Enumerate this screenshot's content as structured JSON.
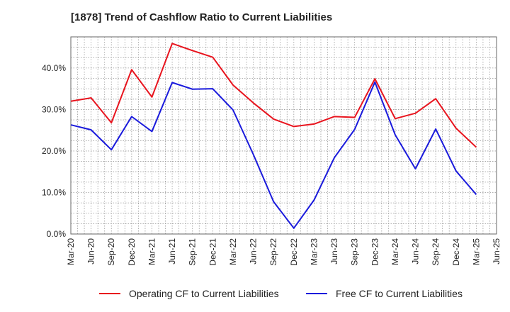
{
  "chart_data": {
    "type": "line",
    "title": "[1878]  Trend of Cashflow Ratio to Current Liabilities",
    "x": [
      "Mar-20",
      "Jun-20",
      "Sep-20",
      "Dec-20",
      "Mar-21",
      "Jun-21",
      "Sep-21",
      "Dec-21",
      "Mar-22",
      "Jun-22",
      "Sep-22",
      "Dec-22",
      "Mar-23",
      "Jun-23",
      "Sep-23",
      "Dec-23",
      "Mar-24",
      "Jun-24",
      "Sep-24",
      "Dec-24",
      "Mar-25",
      "Jun-25"
    ],
    "series": [
      {
        "name": "Operating CF to Current Liabilities",
        "color": "#e8141e",
        "values": [
          32.0,
          32.8,
          26.8,
          39.6,
          33.0,
          45.9,
          44.2,
          42.6,
          35.9,
          31.6,
          27.7,
          25.9,
          26.5,
          28.3,
          28.1,
          37.4,
          27.8,
          29.1,
          32.6,
          25.5,
          20.9,
          null
        ]
      },
      {
        "name": "Free CF to Current Liabilities",
        "color": "#1a1adc",
        "values": [
          26.3,
          25.1,
          20.3,
          28.3,
          24.7,
          36.5,
          34.9,
          35.0,
          29.9,
          19.2,
          7.8,
          1.4,
          8.2,
          18.4,
          25.2,
          36.6,
          23.9,
          15.7,
          25.3,
          15.2,
          9.5,
          null
        ]
      }
    ],
    "y_ticks": [
      "0.0%",
      "10.0%",
      "20.0%",
      "30.0%",
      "40.0%"
    ],
    "ylim": [
      0,
      47.5
    ],
    "grid": true,
    "legend": "bottom"
  }
}
